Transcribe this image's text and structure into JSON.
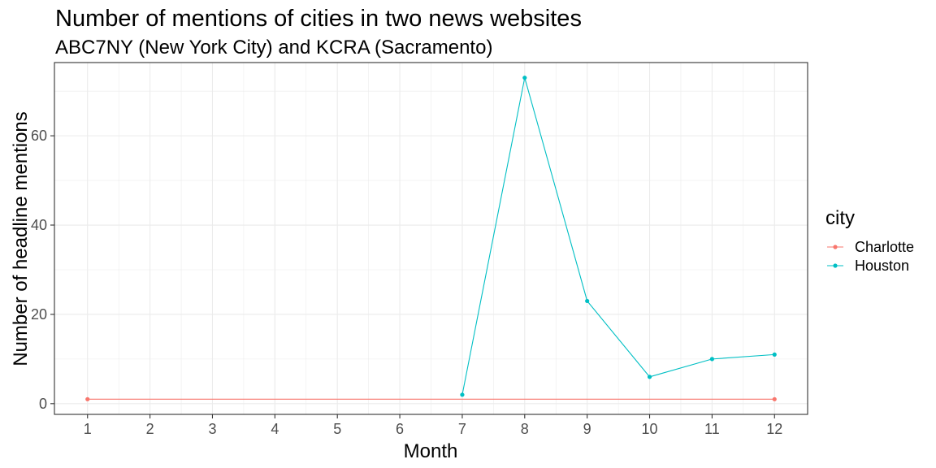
{
  "chart_data": {
    "type": "line",
    "title": "Number of mentions of cities in two news websites",
    "subtitle": "ABC7NY (New York City) and KCRA (Sacramento)",
    "xlabel": "Month",
    "ylabel": "Number of headline mentions",
    "x_ticks": [
      "1",
      "2",
      "3",
      "4",
      "5",
      "6",
      "7",
      "8",
      "9",
      "10",
      "11",
      "12"
    ],
    "y_ticks": [
      "0",
      "20",
      "40",
      "60"
    ],
    "xlim": [
      0.47,
      12.53
    ],
    "ylim": [
      -2.4,
      76.4
    ],
    "grid": true,
    "legend": {
      "title": "city",
      "placement": "right"
    },
    "series": [
      {
        "name": "Charlotte",
        "color": "#F8766D",
        "x": [
          1,
          12
        ],
        "y": [
          1,
          1
        ]
      },
      {
        "name": "Houston",
        "color": "#00BFC4",
        "x": [
          7,
          8,
          9,
          10,
          11,
          12
        ],
        "y": [
          2,
          73,
          23,
          6,
          10,
          11
        ]
      }
    ]
  }
}
